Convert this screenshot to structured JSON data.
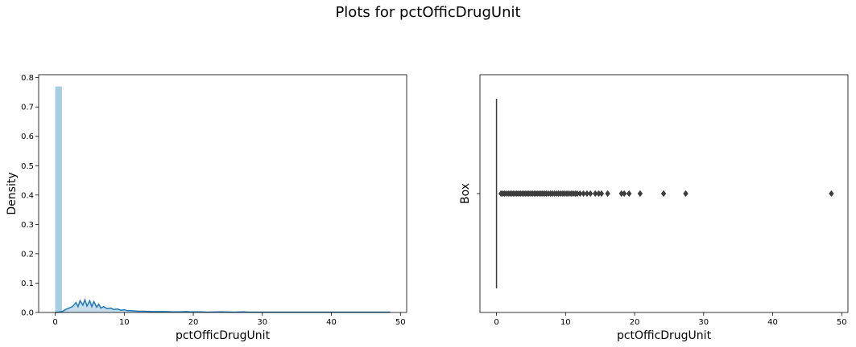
{
  "figure": {
    "title": "Plots for pctOfficDrugUnit"
  },
  "chart_data": [
    {
      "type": "bar",
      "subtype": "histogram-with-kde",
      "title": "",
      "xlabel": "pctOfficDrugUnit",
      "ylabel": "Density",
      "xlim": [
        -2.4,
        50.9
      ],
      "ylim": [
        0,
        0.81
      ],
      "xticks": [
        0,
        10,
        20,
        30,
        40,
        50
      ],
      "yticks": [
        0.0,
        0.1,
        0.2,
        0.3,
        0.4,
        0.5,
        0.6,
        0.7,
        0.8
      ],
      "hist_color": "#a6cde2",
      "kde_color": "#1f77b4",
      "bins": [
        {
          "x0": 0.0,
          "x1": 0.97,
          "value": 0.77
        },
        {
          "x0": 0.97,
          "x1": 1.94,
          "value": 0.002
        }
      ],
      "kde": {
        "x": [
          0.0,
          0.5,
          1.0,
          1.5,
          2.0,
          2.5,
          3.0,
          3.3,
          3.6,
          4.0,
          4.3,
          4.6,
          5.0,
          5.3,
          5.6,
          6.0,
          6.3,
          6.6,
          7.0,
          7.5,
          8.0,
          8.5,
          9.0,
          9.5,
          10.0,
          10.5,
          11.0,
          11.5,
          12.0,
          13.0,
          14.0,
          15.0,
          16.0,
          17.0,
          18.0,
          19.0,
          19.5,
          20.0,
          21.0,
          22.0,
          24.0,
          26.0,
          27.3,
          28.0,
          30.0,
          35.0,
          40.0,
          45.0,
          48.5
        ],
        "y": [
          0.0,
          0.001,
          0.003,
          0.01,
          0.015,
          0.02,
          0.034,
          0.02,
          0.04,
          0.025,
          0.043,
          0.022,
          0.04,
          0.02,
          0.037,
          0.018,
          0.028,
          0.015,
          0.02,
          0.013,
          0.015,
          0.01,
          0.012,
          0.008,
          0.009,
          0.006,
          0.006,
          0.005,
          0.004,
          0.004,
          0.003,
          0.003,
          0.003,
          0.002,
          0.002,
          0.003,
          0.002,
          0.002,
          0.002,
          0.001,
          0.002,
          0.001,
          0.002,
          0.001,
          0.001,
          0.001,
          0.001,
          0.001,
          0.001
        ]
      }
    },
    {
      "type": "scatter",
      "subtype": "boxplot",
      "title": "",
      "xlabel": "pctOfficDrugUnit",
      "ylabel": "Box",
      "xlim": [
        -2.4,
        50.9
      ],
      "xticks": [
        0,
        10,
        20,
        30,
        40,
        50
      ],
      "box": {
        "min": 0,
        "q1": 0,
        "median": 0,
        "q3": 0,
        "max": 0
      },
      "outliers": [
        0.65,
        0.9,
        1.15,
        1.4,
        1.7,
        1.95,
        2.2,
        2.45,
        2.7,
        2.95,
        3.2,
        3.45,
        3.7,
        3.95,
        4.2,
        4.45,
        4.7,
        4.95,
        5.2,
        5.45,
        5.7,
        5.95,
        6.2,
        6.45,
        6.7,
        6.95,
        7.2,
        7.5,
        7.8,
        8.1,
        8.4,
        8.7,
        9.0,
        9.3,
        9.6,
        9.9,
        10.2,
        10.5,
        10.8,
        11.1,
        11.4,
        11.7,
        12.1,
        12.6,
        13.1,
        13.6,
        14.3,
        14.8,
        15.2,
        16.1,
        18.1,
        18.5,
        19.2,
        20.8,
        24.2,
        27.4,
        48.5
      ],
      "outlier_color": "#3d3d3d"
    }
  ]
}
